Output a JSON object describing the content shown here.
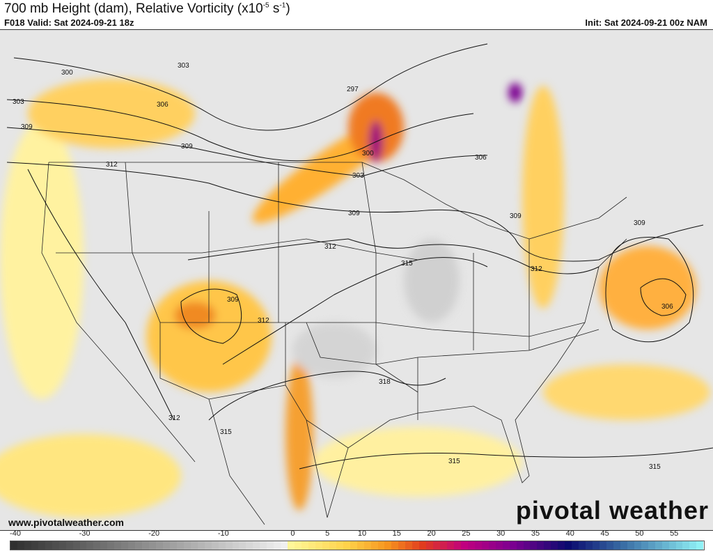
{
  "header": {
    "title_main": "700 mb Height (dam), Relative Vorticity (x10",
    "title_exp1": "-5",
    "title_unit": " s",
    "title_exp2": "-1",
    "title_end": ")",
    "valid": "F018 Valid: Sat 2024-09-21 18z",
    "init": "Init: Sat 2024-09-21 00z NAM"
  },
  "footer": {
    "url": "www.pivotalweather.com",
    "brand": "pivotal weather"
  },
  "contour_labels": [
    "297",
    "300",
    "303",
    "306",
    "309",
    "312",
    "315",
    "318"
  ],
  "colorbar": {
    "ticks": [
      "-40",
      "-30",
      "-20",
      "-10",
      "0",
      "5",
      "10",
      "15",
      "20",
      "25",
      "30",
      "35",
      "40",
      "45",
      "50",
      "55"
    ],
    "range": [
      -40,
      60
    ],
    "colors": {
      "neg_dark": "#303030",
      "neg_light": "#f0f0f0",
      "zero": "#fff799",
      "yellow": "#ffd24a",
      "orange": "#f7931e",
      "red": "#e03c1e",
      "magenta": "#c0007f",
      "purple": "#7a0090",
      "navy": "#0a0a6e",
      "blue": "#3a6ea5",
      "cyan": "#8ff0f5"
    }
  }
}
